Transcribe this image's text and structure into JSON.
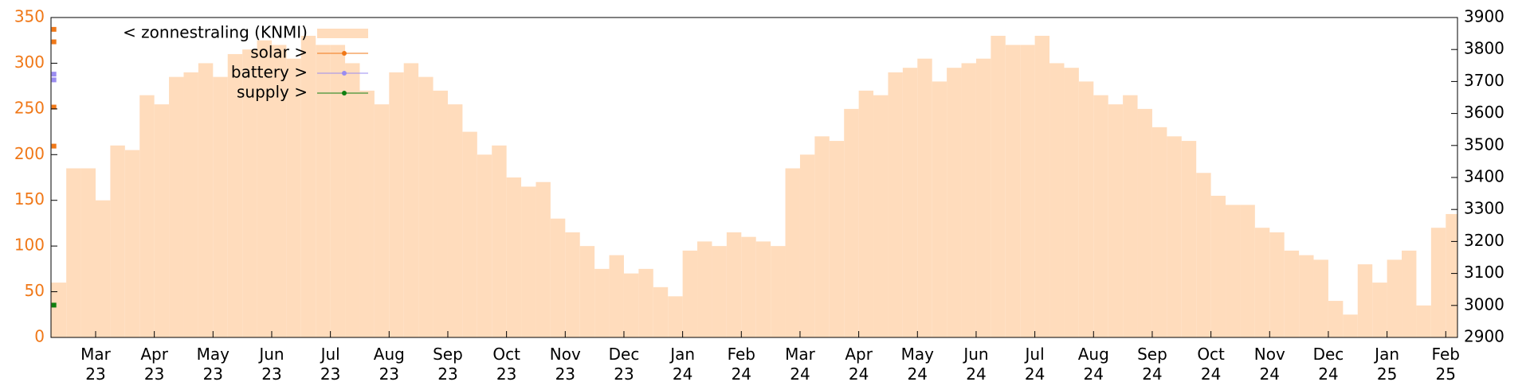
{
  "chart_data": {
    "type": "step-area",
    "xlim": [
      0.24,
      24.2
    ],
    "xticks": [
      {
        "value": 1,
        "label": "Mar 23"
      },
      {
        "value": 2,
        "label": "Apr 23"
      },
      {
        "value": 3,
        "label": "May 23"
      },
      {
        "value": 4,
        "label": "Jun 23"
      },
      {
        "value": 5,
        "label": "Jul 23"
      },
      {
        "value": 6,
        "label": "Aug 23"
      },
      {
        "value": 7,
        "label": "Sep 23"
      },
      {
        "value": 8,
        "label": "Oct 23"
      },
      {
        "value": 9,
        "label": "Nov 23"
      },
      {
        "value": 10,
        "label": "Dec 23"
      },
      {
        "value": 11,
        "label": "Jan 24"
      },
      {
        "value": 12,
        "label": "Feb 24"
      },
      {
        "value": 13,
        "label": "Mar 24"
      },
      {
        "value": 14,
        "label": "Apr 24"
      },
      {
        "value": 15,
        "label": "May 24"
      },
      {
        "value": 16,
        "label": "Jun 24"
      },
      {
        "value": 17,
        "label": "Jul 24"
      },
      {
        "value": 18,
        "label": "Aug 24"
      },
      {
        "value": 19,
        "label": "Sep 24"
      },
      {
        "value": 20,
        "label": "Oct 24"
      },
      {
        "value": 21,
        "label": "Nov 24"
      },
      {
        "value": 22,
        "label": "Dec 24"
      },
      {
        "value": 23,
        "label": "Jan 25"
      },
      {
        "value": 24,
        "label": "Feb 25"
      }
    ],
    "ylim": [
      0,
      350
    ],
    "yticks": [
      0,
      50,
      100,
      150,
      200,
      250,
      300,
      350
    ],
    "y2lim": [
      2900,
      3900
    ],
    "y2ticks": [
      2900,
      3000,
      3100,
      3200,
      3300,
      3400,
      3500,
      3600,
      3700,
      3800,
      3900
    ],
    "y_color": "#f07818",
    "series": [
      {
        "name": "< zonnestraling (KNMI)",
        "color": "#ffdcbc",
        "axis": "y",
        "style": "step",
        "x": [
          0.24,
          0.5,
          0.75,
          1.0,
          1.25,
          1.5,
          1.75,
          2.0,
          2.25,
          2.5,
          2.75,
          3.0,
          3.25,
          3.5,
          3.75,
          4.0,
          4.25,
          4.5,
          4.75,
          5.0,
          5.25,
          5.5,
          5.75,
          6.0,
          6.25,
          6.5,
          6.75,
          7.0,
          7.25,
          7.5,
          7.75,
          8.0,
          8.25,
          8.5,
          8.75,
          9.0,
          9.25,
          9.5,
          9.75,
          10.0,
          10.25,
          10.5,
          10.75,
          11.0,
          11.25,
          11.5,
          11.75,
          12.0,
          12.25,
          12.5,
          12.75,
          13.0,
          13.25,
          13.5,
          13.75,
          14.0,
          14.25,
          14.5,
          14.75,
          15.0,
          15.25,
          15.5,
          15.75,
          16.0,
          16.25,
          16.5,
          16.75,
          17.0,
          17.25,
          17.5,
          17.75,
          18.0,
          18.25,
          18.5,
          18.75,
          19.0,
          19.25,
          19.5,
          19.75,
          20.0,
          20.25,
          20.5,
          20.75,
          21.0,
          21.25,
          21.5,
          21.75,
          22.0,
          22.25,
          22.5,
          22.75,
          23.0,
          23.25,
          23.5,
          23.75,
          24.0
        ],
        "values": [
          60,
          185,
          185,
          150,
          210,
          205,
          265,
          255,
          285,
          290,
          300,
          285,
          310,
          315,
          325,
          320,
          305,
          330,
          320,
          320,
          300,
          270,
          255,
          290,
          300,
          285,
          270,
          255,
          225,
          200,
          210,
          175,
          165,
          170,
          130,
          115,
          100,
          75,
          90,
          70,
          75,
          55,
          45,
          95,
          105,
          100,
          115,
          110,
          105,
          100,
          185,
          200,
          220,
          215,
          250,
          270,
          265,
          290,
          295,
          305,
          280,
          295,
          300,
          305,
          330,
          320,
          320,
          330,
          300,
          295,
          280,
          265,
          255,
          265,
          250,
          230,
          220,
          215,
          180,
          155,
          145,
          145,
          120,
          115,
          95,
          90,
          85,
          40,
          25,
          80,
          60,
          85,
          95,
          35,
          120,
          135
        ]
      },
      {
        "name": "solar >",
        "color": "#f07818",
        "axis": "y2",
        "style": "points",
        "x": [
          0.29,
          0.29,
          0.29,
          0.29
        ],
        "values": [
          3863,
          3824,
          3620,
          3498
        ]
      },
      {
        "name": "battery >",
        "color": "#9a8cf0",
        "axis": "y2",
        "style": "points",
        "x": [
          0.29,
          0.29
        ],
        "values": [
          3723,
          3705
        ]
      },
      {
        "name": "supply >",
        "color": "#108010",
        "axis": "y2",
        "style": "points",
        "x": [
          0.29
        ],
        "values": [
          3001
        ]
      }
    ]
  }
}
